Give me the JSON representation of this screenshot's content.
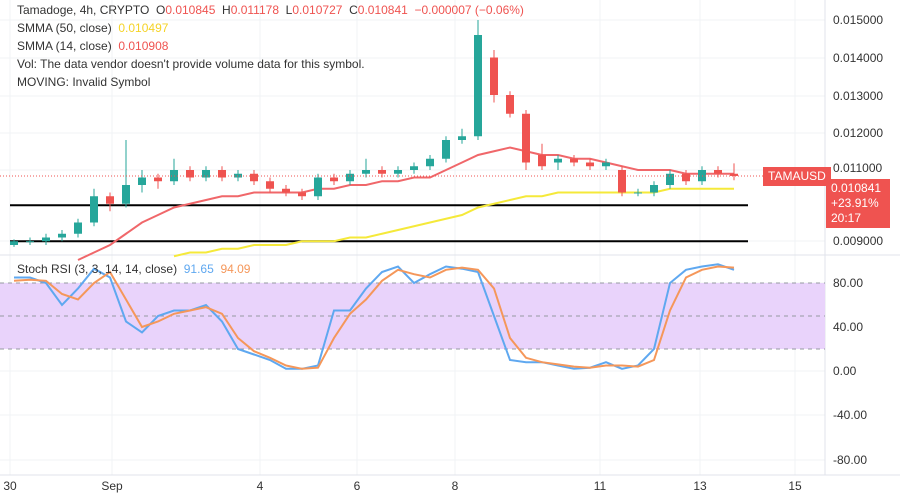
{
  "header": {
    "symbol": "Tamadoge, 4h, CRYPTO",
    "o_label": "O",
    "o": "0.010845",
    "h_label": "H",
    "h": "0.011178",
    "l_label": "L",
    "l": "0.010727",
    "c_label": "C",
    "c": "0.010841",
    "change": "−0.000007 (−0.06%)"
  },
  "indicators": {
    "smma50_label": "SMMA (50, close)",
    "smma50_value": "0.010497",
    "smma14_label": "SMMA (14, close)",
    "smma14_value": "0.010908",
    "vol": "Vol: The data vendor doesn't provide volume data for this symbol.",
    "moving": "MOVING: Invalid Symbol",
    "stoch_label": "Stoch RSI (3, 3, 14, 14, close)",
    "stoch_k": "91.65",
    "stoch_d": "94.09"
  },
  "price_tag": {
    "symbol": "TAMAUSD",
    "price": "0.010841",
    "change": "+23.91%",
    "countdown": "20:17"
  },
  "colors": {
    "up": "#26a69a",
    "down": "#ef5350",
    "smma14": "#f0676a",
    "smma50": "#f5e93a",
    "stoch_k": "#5fa8f0",
    "stoch_d": "#f5975a",
    "band": "#e9d3fb"
  },
  "chart_data": [
    {
      "type": "candlestick",
      "price_axis_ticks": [
        "0.015000",
        "0.014000",
        "0.013000",
        "0.012000",
        "0.011000",
        "0.009000"
      ],
      "x_ticks": [
        "30",
        "Sep",
        "4",
        "6",
        "8",
        "11",
        "13",
        "15"
      ],
      "horizontal_levels": [
        0.01006,
        0.0091
      ],
      "candles_ohlc": [
        [
          0.009,
          0.00915,
          0.00895,
          0.0091
        ],
        [
          0.0091,
          0.0092,
          0.009,
          0.0091
        ],
        [
          0.0091,
          0.0093,
          0.009,
          0.0092
        ],
        [
          0.0092,
          0.0094,
          0.0091,
          0.0093
        ],
        [
          0.0093,
          0.0097,
          0.0092,
          0.0096
        ],
        [
          0.0096,
          0.0105,
          0.0095,
          0.0103
        ],
        [
          0.0103,
          0.0104,
          0.0099,
          0.0101
        ],
        [
          0.0101,
          0.0118,
          0.01,
          0.0106
        ],
        [
          0.0106,
          0.011,
          0.0104,
          0.0108
        ],
        [
          0.0108,
          0.0109,
          0.0105,
          0.0107
        ],
        [
          0.0107,
          0.0113,
          0.0106,
          0.011
        ],
        [
          0.011,
          0.0111,
          0.0107,
          0.0108
        ],
        [
          0.0108,
          0.0111,
          0.0107,
          0.011
        ],
        [
          0.011,
          0.0111,
          0.0107,
          0.0108
        ],
        [
          0.0108,
          0.011,
          0.0107,
          0.0109
        ],
        [
          0.0109,
          0.011,
          0.0106,
          0.0107
        ],
        [
          0.0107,
          0.0108,
          0.0104,
          0.0105
        ],
        [
          0.0105,
          0.0106,
          0.0103,
          0.0104
        ],
        [
          0.0104,
          0.0105,
          0.0102,
          0.0103
        ],
        [
          0.0103,
          0.0109,
          0.0102,
          0.0108
        ],
        [
          0.0108,
          0.0109,
          0.0106,
          0.0107
        ],
        [
          0.0107,
          0.011,
          0.0106,
          0.0109
        ],
        [
          0.0109,
          0.0113,
          0.0108,
          0.011
        ],
        [
          0.011,
          0.0111,
          0.0108,
          0.0109
        ],
        [
          0.0109,
          0.0111,
          0.0108,
          0.011
        ],
        [
          0.011,
          0.0112,
          0.0109,
          0.0111
        ],
        [
          0.0111,
          0.0114,
          0.011,
          0.0113
        ],
        [
          0.0113,
          0.0119,
          0.0112,
          0.0118
        ],
        [
          0.0118,
          0.0121,
          0.0117,
          0.0119
        ],
        [
          0.0119,
          0.015,
          0.0118,
          0.0146
        ],
        [
          0.014,
          0.0142,
          0.0128,
          0.013
        ],
        [
          0.013,
          0.0131,
          0.0124,
          0.0125
        ],
        [
          0.0125,
          0.0126,
          0.011,
          0.0112
        ],
        [
          0.0114,
          0.0117,
          0.011,
          0.0111
        ],
        [
          0.0112,
          0.0114,
          0.011,
          0.0113
        ],
        [
          0.0113,
          0.0114,
          0.0111,
          0.0112
        ],
        [
          0.0112,
          0.0113,
          0.011,
          0.0111
        ],
        [
          0.0111,
          0.0113,
          0.011,
          0.0112
        ],
        [
          0.011,
          0.0111,
          0.0103,
          0.0104
        ],
        [
          0.0104,
          0.0105,
          0.0103,
          0.0104
        ],
        [
          0.0104,
          0.0107,
          0.0103,
          0.0106
        ],
        [
          0.0106,
          0.011,
          0.0105,
          0.0109
        ],
        [
          0.0109,
          0.011,
          0.0106,
          0.0107
        ],
        [
          0.0107,
          0.0111,
          0.0106,
          0.011
        ],
        [
          0.011,
          0.0111,
          0.0108,
          0.0109
        ],
        [
          0.0109,
          0.011178,
          0.010727,
          0.010841
        ]
      ],
      "smma14": [
        null,
        null,
        null,
        null,
        0.0086,
        0.0088,
        0.009,
        0.0093,
        0.0096,
        0.0098,
        0.01,
        0.0101,
        0.0102,
        0.0103,
        0.0103,
        0.0104,
        0.0104,
        0.0104,
        0.0104,
        0.0105,
        0.0105,
        0.0106,
        0.0106,
        0.0107,
        0.0107,
        0.0108,
        0.0108,
        0.011,
        0.0112,
        0.0114,
        0.0115,
        0.0116,
        0.0115,
        0.0114,
        0.0114,
        0.0113,
        0.0113,
        0.0112,
        0.0111,
        0.011,
        0.011,
        0.011,
        0.0109,
        0.0109,
        0.0109,
        0.0109
      ],
      "smma50": [
        null,
        null,
        null,
        null,
        null,
        null,
        null,
        null,
        null,
        null,
        0.0087,
        0.0088,
        0.0088,
        0.0089,
        0.0089,
        0.009,
        0.009,
        0.009,
        0.0091,
        0.0091,
        0.0091,
        0.0092,
        0.0092,
        0.0093,
        0.0094,
        0.0095,
        0.0096,
        0.0097,
        0.0098,
        0.01,
        0.0101,
        0.0102,
        0.0103,
        0.0103,
        0.0104,
        0.0104,
        0.0104,
        0.0104,
        0.0104,
        0.0104,
        0.0104,
        0.0105,
        0.0105,
        0.0105,
        0.0105,
        0.0105
      ]
    },
    {
      "type": "line",
      "title": "Stoch RSI (3, 3, 14, 14, close)",
      "y_ticks": [
        "80.00",
        "40.00",
        "0.00",
        "-40.00",
        "-80.00"
      ],
      "band": [
        20,
        80
      ],
      "series": [
        {
          "name": "K",
          "values": [
            85,
            85,
            80,
            60,
            75,
            93,
            85,
            45,
            35,
            50,
            55,
            55,
            60,
            45,
            20,
            15,
            10,
            2,
            2,
            5,
            55,
            55,
            75,
            90,
            95,
            80,
            88,
            95,
            93,
            90,
            50,
            10,
            8,
            8,
            5,
            2,
            3,
            8,
            2,
            5,
            20,
            80,
            92,
            95,
            97,
            92
          ]
        },
        {
          "name": "D",
          "values": [
            82,
            83,
            82,
            70,
            65,
            80,
            90,
            65,
            40,
            45,
            52,
            55,
            58,
            52,
            30,
            18,
            12,
            5,
            2,
            3,
            30,
            52,
            65,
            82,
            92,
            88,
            85,
            92,
            94,
            92,
            75,
            30,
            12,
            8,
            6,
            4,
            3,
            5,
            5,
            4,
            10,
            55,
            85,
            92,
            95,
            94
          ]
        }
      ]
    }
  ]
}
